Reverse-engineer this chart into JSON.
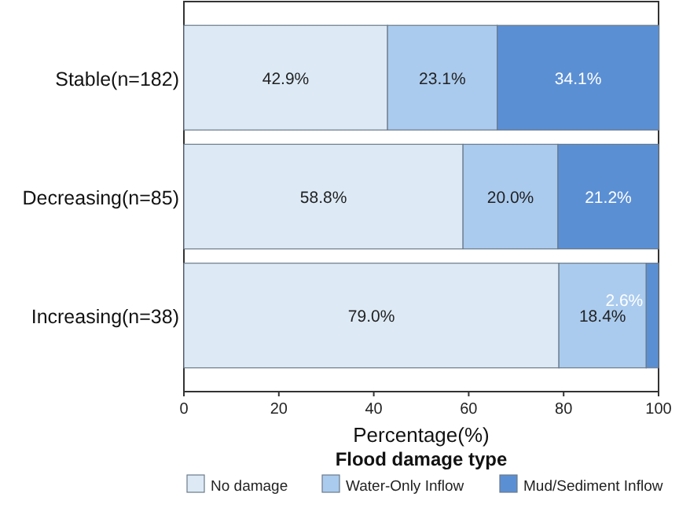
{
  "chart_data": {
    "type": "bar",
    "orientation": "horizontal",
    "stacked": true,
    "categories": [
      "Stable(n=182)",
      "Decreasing(n=85)",
      "Increasing(n=38)"
    ],
    "series": [
      {
        "name": "No damage",
        "color": "#ddeaf6",
        "values": [
          42.9,
          58.8,
          79.0
        ],
        "value_labels": [
          "42.9%",
          "58.8%",
          "79.0%"
        ]
      },
      {
        "name": "Water-Only Inflow",
        "color": "#aacbee",
        "values": [
          23.1,
          20.0,
          18.4
        ],
        "value_labels": [
          "23.1%",
          "20.0%",
          "18.4%"
        ]
      },
      {
        "name": "Mud/Sediment Inflow",
        "color": "#5b8fd4",
        "values": [
          34.1,
          21.2,
          2.6
        ],
        "value_labels": [
          "34.1%",
          "21.2%",
          "2.6%"
        ]
      }
    ],
    "xlim": [
      0,
      100
    ],
    "xticks": [
      0,
      20,
      40,
      60,
      80,
      100
    ],
    "xlabel": "Percentage(%)",
    "legend_title": "Flood damage type",
    "legend": "bottom",
    "grid": false
  }
}
